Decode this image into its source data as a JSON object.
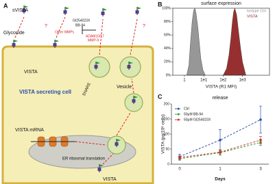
{
  "panel_labels": [
    "A",
    "B",
    "C"
  ],
  "diagram": {
    "svista": "sVISTA",
    "glycoside": "Glycoside",
    "inhibitor_1": "GI254023X",
    "inhibitor_2": "BB-94",
    "other_mmps": "Other MMPs",
    "adam": "ADAM10/17",
    "mmp9": "MMP-9",
    "unknown_1": "?",
    "unknown_2": "?",
    "membrane_vista": "VISTA",
    "cell": "VISTA secreting cell",
    "snare": "SNARE",
    "vesicle": "Vesicle",
    "mrna": "VISTA mRNA",
    "er": "ER ribosmal translation",
    "bottom_vista": "VISTA"
  },
  "chart_data": [
    {
      "type": "area",
      "title": "surface expression",
      "xlabel": "VISTA (R1 MFI)",
      "xscale": "log",
      "xlim": [
        0.25,
        25000
      ],
      "xticks": [
        1,
        {
          "value": 10,
          "label": "1e1"
        },
        {
          "value": 100,
          "label": "1e2"
        },
        {
          "value": 1000,
          "label": "1e3"
        }
      ],
      "ylim": [
        0,
        100
      ],
      "yticks": [
        {
          "value": 0,
          "label": "0%"
        },
        {
          "value": 20,
          "label": "20%"
        },
        {
          "value": 40,
          "label": "40%"
        },
        {
          "value": 60,
          "label": "60%"
        },
        {
          "value": 80,
          "label": "80%"
        },
        {
          "value": 100,
          "label": "100%"
        }
      ],
      "series": [
        {
          "name": "Isotype Ctrl",
          "color": "#8c8c8c",
          "x": [
            1.3,
            1.7,
            2,
            2.5,
            3,
            3.5,
            4,
            5,
            6,
            7,
            9,
            12
          ],
          "values": [
            0,
            15,
            45,
            80,
            97,
            100,
            92,
            70,
            45,
            25,
            8,
            0
          ]
        },
        {
          "name": "VISTA",
          "color": "#8b1a1a",
          "x": [
            100,
            150,
            200,
            250,
            300,
            350,
            400,
            500,
            600,
            800,
            1000,
            1500
          ],
          "values": [
            0,
            10,
            30,
            55,
            80,
            95,
            100,
            90,
            70,
            40,
            20,
            0
          ]
        }
      ]
    },
    {
      "type": "line",
      "title": "release",
      "xlabel": "Days",
      "ylabel": "VISTA (pg/10⁶ cells)",
      "categories": [
        "0",
        "1",
        "3"
      ],
      "line_style": "dashed",
      "ylim": [
        0,
        200
      ],
      "yticks": [
        0,
        50,
        100,
        150,
        200
      ],
      "series": [
        {
          "name": "Ctrl",
          "color": "#2b4fa8",
          "values": [
            25,
            80,
            148
          ],
          "errors": [
            8,
            35,
            45
          ]
        },
        {
          "name": "50μM BB-94",
          "color": "#2e9e3a",
          "values": [
            18,
            38,
            72
          ],
          "errors": [
            5,
            8,
            10
          ]
        },
        {
          "name": "50μM GI254023X",
          "color": "#d0302a",
          "values": [
            22,
            40,
            80
          ],
          "errors": [
            5,
            8,
            12
          ]
        }
      ]
    }
  ]
}
